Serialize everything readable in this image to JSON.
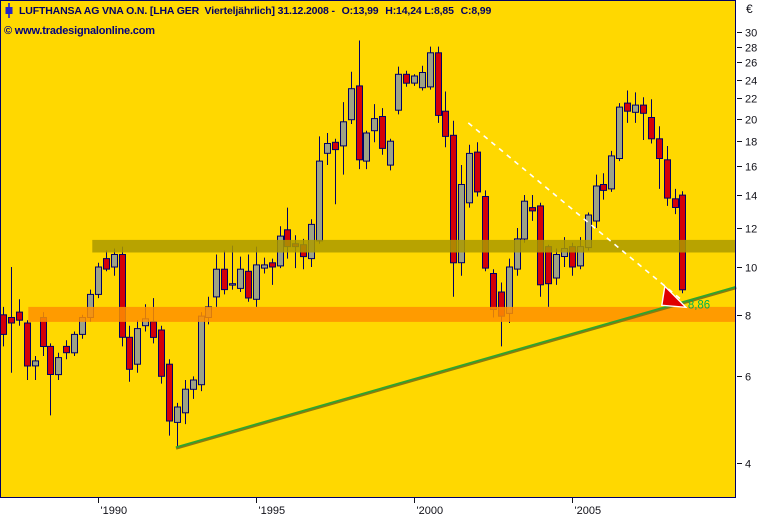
{
  "header": {
    "icon": "blue-candlestick-icon",
    "title_main": "LUFTHANSA AG VNA O.N. [LHA GER  Vierteljährlich] 31.12.2008 - ",
    "open_text": "O:13,99",
    "high_low_text": " H:14,24 L:8,85 ",
    "close_text": "C:8,99",
    "open_color": "#00A500",
    "close_color": "#D90000",
    "title_color": "#000066"
  },
  "watermark": {
    "text": "© www.tradesignalonline.com"
  },
  "axis": {
    "currency": "€",
    "y_ticks": [
      30,
      28,
      26,
      24,
      22,
      20,
      18,
      16,
      14,
      12,
      10,
      8,
      6,
      4
    ],
    "x_ticks": [
      {
        "label": "'1990",
        "index": 12
      },
      {
        "label": "'1995",
        "index": 32
      },
      {
        "label": "'2000",
        "index": 52
      },
      {
        "label": "'2005",
        "index": 72
      }
    ]
  },
  "theme": {
    "background": "#FFD800",
    "border_and_wick": "#000066",
    "up_body_fill": "#9EA285",
    "down_body_fill": "#D40008",
    "resistance_band": "#AC9A00",
    "support_band": "#FF9100",
    "trendline_green": "#2FA52F",
    "trendline_dashed": "#FFFFFF",
    "arrow_fill": "#E00000",
    "annotation_green": "#00B050",
    "axis_background": "#FFFFFF",
    "axis_text": "#101018"
  },
  "chart_data": {
    "type": "candlestick",
    "title": "LUFTHANSA AG VNA O.N.",
    "symbol": "LHA GER",
    "period": "Vierteljährlich",
    "last_date": "31.12.2008",
    "scale": "logarithmic",
    "ylim": [
      3.7,
      31
    ],
    "currency": "€",
    "start": "1987-Q1",
    "candles_ohlc": [
      [
        8.0,
        8.3,
        6.9,
        7.3
      ],
      [
        7.9,
        10.0,
        6.1,
        7.7
      ],
      [
        8.1,
        8.6,
        7.6,
        7.8
      ],
      [
        7.7,
        7.8,
        5.9,
        6.3
      ],
      [
        6.3,
        6.6,
        5.9,
        6.45
      ],
      [
        7.9,
        8.1,
        6.6,
        6.9
      ],
      [
        6.9,
        7.0,
        5.0,
        6.05
      ],
      [
        6.05,
        6.7,
        5.9,
        6.55
      ],
      [
        6.9,
        7.1,
        6.5,
        6.7
      ],
      [
        6.7,
        7.4,
        6.6,
        7.3
      ],
      [
        7.3,
        8.0,
        7.15,
        7.9
      ],
      [
        7.9,
        9.0,
        7.75,
        8.8
      ],
      [
        8.8,
        10.2,
        8.65,
        10.0
      ],
      [
        10.4,
        10.8,
        9.8,
        9.9
      ],
      [
        10.0,
        10.9,
        9.6,
        10.6
      ],
      [
        10.6,
        11.0,
        6.9,
        7.2
      ],
      [
        7.2,
        7.6,
        5.85,
        6.2
      ],
      [
        6.35,
        7.8,
        6.1,
        7.5
      ],
      [
        7.6,
        8.4,
        7.4,
        7.85
      ],
      [
        7.75,
        8.65,
        7.0,
        7.2
      ],
      [
        7.45,
        7.6,
        5.8,
        6.0
      ],
      [
        6.35,
        6.5,
        4.55,
        4.87
      ],
      [
        4.84,
        5.3,
        4.3,
        5.2
      ],
      [
        5.06,
        5.9,
        4.8,
        5.65
      ],
      [
        5.65,
        6.0,
        5.4,
        5.9
      ],
      [
        5.77,
        8.1,
        5.6,
        7.95
      ],
      [
        7.9,
        8.7,
        7.65,
        8.3
      ],
      [
        8.7,
        10.6,
        8.3,
        9.9
      ],
      [
        9.9,
        10.8,
        8.8,
        9.0
      ],
      [
        9.2,
        11.05,
        9.0,
        9.25
      ],
      [
        9.05,
        10.5,
        8.9,
        9.9
      ],
      [
        9.8,
        10.6,
        8.5,
        8.65
      ],
      [
        8.6,
        11.0,
        8.3,
        10.1
      ],
      [
        9.95,
        10.45,
        9.7,
        10.1
      ],
      [
        10.2,
        10.4,
        9.2,
        10.0
      ],
      [
        10.05,
        12.1,
        9.95,
        11.55
      ],
      [
        11.9,
        13.2,
        10.4,
        11.0
      ],
      [
        11.15,
        11.6,
        9.95,
        11.0
      ],
      [
        11.1,
        11.4,
        9.9,
        10.5
      ],
      [
        10.4,
        12.5,
        10.0,
        12.2
      ],
      [
        11.3,
        18.4,
        11.15,
        16.4
      ],
      [
        17.0,
        18.7,
        16.1,
        17.8
      ],
      [
        17.9,
        18.2,
        13.4,
        17.3
      ],
      [
        17.6,
        21.6,
        15.4,
        19.7
      ],
      [
        19.9,
        24.9,
        19.5,
        23.0
      ],
      [
        23.3,
        28.8,
        15.8,
        16.5
      ],
      [
        16.4,
        18.9,
        15.8,
        18.7
      ],
      [
        18.9,
        21.4,
        17.9,
        20.0
      ],
      [
        20.2,
        21.0,
        16.9,
        17.4
      ],
      [
        16.1,
        18.2,
        15.7,
        18.0
      ],
      [
        20.8,
        25.5,
        20.4,
        24.6
      ],
      [
        24.6,
        25.0,
        23.2,
        23.6
      ],
      [
        23.6,
        24.6,
        23.3,
        24.4
      ],
      [
        23.1,
        25.6,
        22.8,
        24.8
      ],
      [
        23.2,
        28.0,
        22.9,
        27.2
      ],
      [
        27.2,
        28.0,
        19.6,
        20.3
      ],
      [
        20.7,
        22.7,
        17.5,
        18.4
      ],
      [
        18.5,
        19.8,
        8.7,
        10.2
      ],
      [
        10.2,
        16.1,
        9.6,
        14.7
      ],
      [
        13.5,
        17.7,
        13.2,
        17.0
      ],
      [
        17.1,
        17.9,
        13.9,
        14.2
      ],
      [
        13.9,
        14.3,
        9.8,
        9.95
      ],
      [
        9.7,
        9.9,
        7.9,
        8.2
      ],
      [
        8.9,
        9.3,
        6.9,
        7.95
      ],
      [
        8.05,
        10.4,
        7.7,
        10.0
      ],
      [
        9.9,
        12.0,
        9.6,
        11.4
      ],
      [
        11.4,
        14.0,
        11.2,
        13.6
      ],
      [
        13.2,
        14.0,
        12.4,
        13.0
      ],
      [
        13.3,
        13.5,
        8.7,
        9.2
      ],
      [
        11.0,
        11.1,
        8.3,
        9.25
      ],
      [
        9.5,
        10.9,
        9.2,
        10.6
      ],
      [
        10.5,
        11.5,
        10.0,
        10.9
      ],
      [
        11.0,
        11.2,
        9.6,
        10.0
      ],
      [
        10.05,
        11.5,
        9.9,
        11.0
      ],
      [
        10.95,
        12.9,
        10.8,
        12.75
      ],
      [
        12.4,
        15.4,
        12.0,
        14.6
      ],
      [
        14.7,
        15.5,
        13.7,
        14.3
      ],
      [
        14.4,
        17.2,
        14.2,
        16.8
      ],
      [
        16.6,
        21.5,
        16.4,
        21.1
      ],
      [
        21.5,
        22.8,
        19.6,
        20.7
      ],
      [
        20.6,
        22.6,
        19.6,
        21.3
      ],
      [
        21.3,
        22.1,
        18.1,
        20.5
      ],
      [
        20.1,
        21.9,
        17.8,
        18.2
      ],
      [
        18.2,
        19.3,
        14.4,
        16.6
      ],
      [
        16.5,
        17.6,
        13.3,
        13.8
      ],
      [
        13.75,
        14.4,
        12.8,
        13.2
      ],
      [
        13.99,
        14.24,
        8.85,
        8.99
      ]
    ],
    "bands": [
      {
        "name": "resistance-zone",
        "price_top": 11.35,
        "price_bottom": 10.7,
        "start_index": 11.3
      },
      {
        "name": "support-zone",
        "price_top": 8.3,
        "price_bottom": 7.74,
        "start_index": 3.2
      }
    ],
    "trendlines": [
      {
        "name": "rising-support-line",
        "style": "solid-green",
        "i1": 21.9,
        "p1": 4.31,
        "i2": 92.8,
        "p2": 9.12
      },
      {
        "name": "falling-dashed-line",
        "style": "dashed-white",
        "i1": 58.9,
        "p1": 19.6,
        "i2": 85.8,
        "p2": 8.6
      }
    ],
    "annotation": {
      "text": "8,86",
      "price": 8.6,
      "color": "#00B050"
    }
  }
}
